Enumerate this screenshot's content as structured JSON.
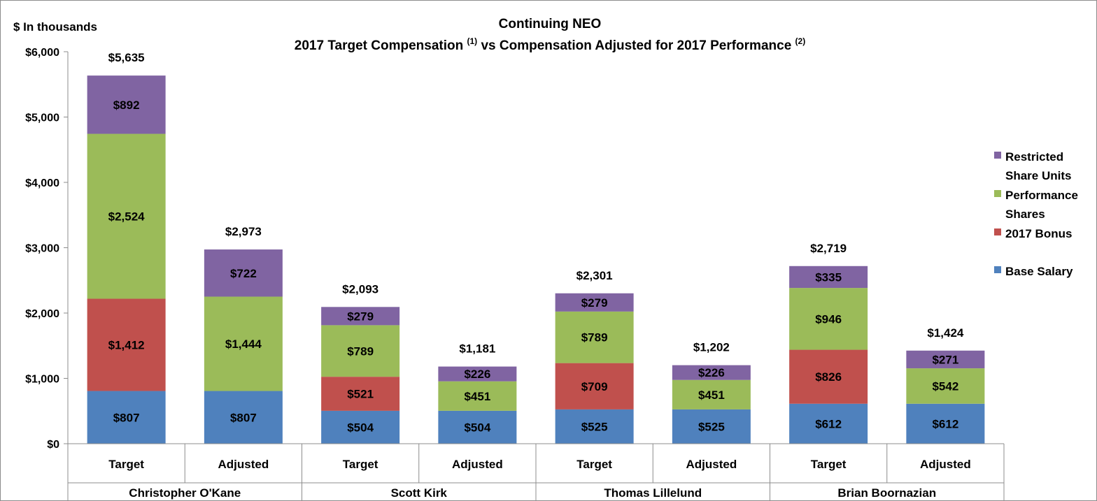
{
  "chart_data": {
    "type": "bar",
    "stacked": true,
    "title": "Continuing NEO",
    "subtitle": {
      "text_a": "2017 Target Compensation ",
      "sup_a": "(1)",
      "text_b": " vs Compensation Adjusted for 2017 Performance ",
      "sup_b": "(2)"
    },
    "ylabel": "$ In thousands",
    "ylim": [
      0,
      6000
    ],
    "y_ticks": [
      {
        "value": 0,
        "label": "$0"
      },
      {
        "value": 1000,
        "label": "$1,000"
      },
      {
        "value": 2000,
        "label": "$2,000"
      },
      {
        "value": 3000,
        "label": "$3,000"
      },
      {
        "value": 4000,
        "label": "$4,000"
      },
      {
        "value": 5000,
        "label": "$5,000"
      },
      {
        "value": 6000,
        "label": "$6,000"
      }
    ],
    "grid": false,
    "legend_position": "right",
    "groups": [
      "Christopher O'Kane",
      "Scott Kirk",
      "Thomas Lillelund",
      "Brian Boornazian"
    ],
    "categories": [
      "Target",
      "Adjusted",
      "Target",
      "Adjusted",
      "Target",
      "Adjusted",
      "Target",
      "Adjusted"
    ],
    "totals": [
      "$5,635",
      "$2,973",
      "$2,093",
      "$1,181",
      "$2,301",
      "$1,202",
      "$2,719",
      "$1,424"
    ],
    "series": [
      {
        "name": "Base Salary",
        "color": "#4f81bd",
        "values": [
          807,
          807,
          504,
          504,
          525,
          525,
          612,
          612
        ],
        "labels": [
          "$807",
          "$807",
          "$504",
          "$504",
          "$525",
          "$525",
          "$612",
          "$612"
        ]
      },
      {
        "name": "2017 Bonus",
        "color": "#c0504d",
        "values": [
          1412,
          0,
          521,
          0,
          709,
          0,
          826,
          0
        ],
        "labels": [
          "$1,412",
          "",
          "$521",
          "",
          "$709",
          "",
          "$826",
          ""
        ]
      },
      {
        "name": "Performance Shares",
        "color": "#9bbb59",
        "values": [
          2524,
          1444,
          789,
          451,
          789,
          451,
          946,
          542
        ],
        "labels": [
          "$2,524",
          "$1,444",
          "$789",
          "$451",
          "$789",
          "$451",
          "$946",
          "$542"
        ]
      },
      {
        "name": "Restricted Share Units",
        "color": "#8064a2",
        "values": [
          892,
          722,
          279,
          226,
          279,
          226,
          335,
          271
        ],
        "labels": [
          "$892",
          "$722",
          "$279",
          "$226",
          "$279",
          "$226",
          "$335",
          "$271"
        ]
      }
    ],
    "legend": [
      {
        "line1": "Restricted",
        "line2": "Share Units",
        "series": 3
      },
      {
        "line1": "Performance",
        "line2": "Shares",
        "series": 2
      },
      {
        "line1": "2017 Bonus",
        "line2": "",
        "series": 1
      },
      {
        "line1": "Base Salary",
        "line2": "",
        "series": 0
      }
    ]
  }
}
